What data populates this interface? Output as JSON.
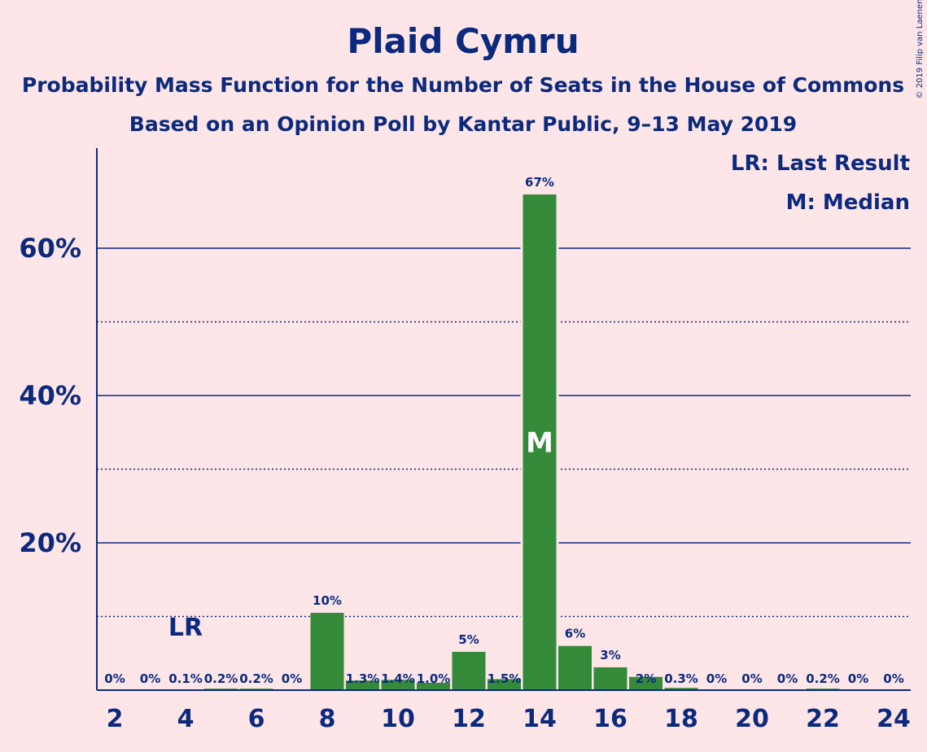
{
  "chart_data": {
    "type": "bar",
    "title": "Plaid Cymru",
    "subtitle_line1": "Probability Mass Function for the Number of Seats in the House of Commons",
    "subtitle_line2": "Based on an Opinion Poll by Kantar Public, 9–13 May 2019",
    "x": [
      2,
      3,
      4,
      5,
      6,
      7,
      8,
      9,
      10,
      11,
      12,
      13,
      14,
      15,
      16,
      17,
      18,
      19,
      20,
      21,
      22,
      23,
      24
    ],
    "values": [
      0,
      0,
      0.1,
      0.2,
      0.2,
      0,
      10.5,
      1.3,
      1.4,
      1.0,
      5.2,
      1.5,
      67.3,
      6.0,
      3.1,
      1.8,
      0.3,
      0,
      0,
      0,
      0.2,
      0,
      0
    ],
    "data_labels": [
      "0%",
      "0%",
      "0.1%",
      "0.2%",
      "0.2%",
      "0%",
      "10%",
      "1.3%",
      "1.4%",
      "1.0%",
      "5%",
      "1.5%",
      "67%",
      "6%",
      "3%",
      "2%",
      "0.3%",
      "0%",
      "0%",
      "0%",
      "0.2%",
      "0%",
      "0%"
    ],
    "x_tick_values": [
      2,
      4,
      6,
      8,
      10,
      12,
      14,
      16,
      18,
      20,
      22,
      24
    ],
    "x_tick_labels": [
      "2",
      "4",
      "6",
      "8",
      "10",
      "12",
      "14",
      "16",
      "18",
      "20",
      "22",
      "24"
    ],
    "y_tick_values": [
      20,
      40,
      60
    ],
    "y_tick_labels": [
      "20%",
      "40%",
      "60%"
    ],
    "y_minor_gridlines": [
      10,
      30,
      50
    ],
    "ylim": [
      0,
      73
    ],
    "grid": true,
    "last_result_seat": 4,
    "last_result_marker": "LR",
    "median_seat": 14,
    "median_marker": "M",
    "legend": {
      "position": "top-right",
      "items": [
        "LR: Last Result",
        "M: Median"
      ]
    },
    "copyright": "© 2019 Filip van Laenen",
    "colors": {
      "bar": "#358a3a",
      "text": "#0b2a7d",
      "background": "#fde5e8",
      "axis": "#0b2a7d"
    }
  }
}
